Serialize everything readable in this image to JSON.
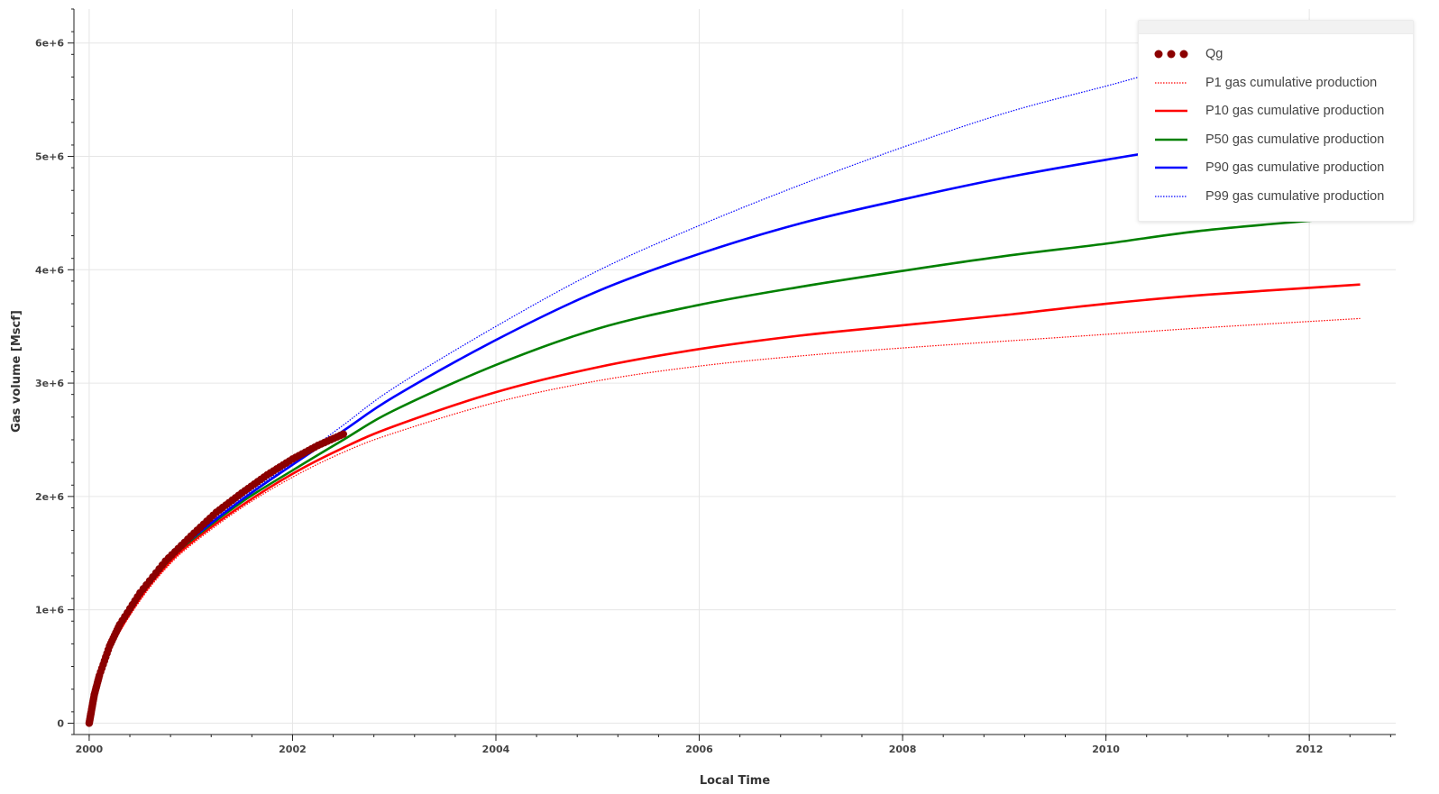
{
  "chart_data": {
    "type": "line",
    "xlabel": "Local Time",
    "ylabel": "Gas volume [Mscf]",
    "xlim": [
      1999.85,
      2012.85
    ],
    "ylim": [
      -100000,
      6300000
    ],
    "x_ticks": [
      2000,
      2002,
      2004,
      2006,
      2008,
      2010,
      2012
    ],
    "x_tick_labels": [
      "2000",
      "2002",
      "2004",
      "2006",
      "2008",
      "2010",
      "2012"
    ],
    "y_ticks": [
      0,
      1000000,
      2000000,
      3000000,
      4000000,
      5000000,
      6000000
    ],
    "y_tick_labels": [
      "0",
      "1e+6",
      "2e+6",
      "3e+6",
      "4e+6",
      "5e+6",
      "6e+6"
    ],
    "grid": true,
    "legend_position": "top-right",
    "series": [
      {
        "name": "Qg",
        "kind": "scatter",
        "color": "#8b0000",
        "x": [
          2000.0,
          2000.02,
          2000.05,
          2000.1,
          2000.2,
          2000.3,
          2000.5,
          2000.75,
          2001.0,
          2001.25,
          2001.5,
          2001.75,
          2002.0,
          2002.25,
          2002.5
        ],
        "y": [
          0,
          100000,
          250000,
          420000,
          680000,
          870000,
          1150000,
          1430000,
          1650000,
          1860000,
          2030000,
          2190000,
          2330000,
          2450000,
          2550000
        ]
      },
      {
        "name": "P1 gas cumulative production",
        "kind": "line",
        "style": "dotted",
        "color": "#ff0000",
        "x": [
          2000.0,
          2000.1,
          2000.25,
          2000.5,
          2000.75,
          2001.0,
          2001.5,
          2002.0,
          2002.5,
          2003.0,
          2004.0,
          2005.0,
          2006.0,
          2007.0,
          2008.0,
          2009.0,
          2010.0,
          2011.0,
          2012.5
        ],
        "y": [
          0,
          370000,
          720000,
          1080000,
          1360000,
          1570000,
          1900000,
          2170000,
          2390000,
          2560000,
          2830000,
          3020000,
          3150000,
          3240000,
          3310000,
          3370000,
          3430000,
          3490000,
          3570000
        ]
      },
      {
        "name": "P10 gas cumulative production",
        "kind": "line",
        "style": "solid",
        "color": "#ff0000",
        "x": [
          2000.0,
          2000.1,
          2000.25,
          2000.5,
          2000.75,
          2001.0,
          2001.5,
          2002.0,
          2002.5,
          2003.0,
          2004.0,
          2005.0,
          2006.0,
          2007.0,
          2008.0,
          2009.0,
          2010.0,
          2011.0,
          2012.5
        ],
        "y": [
          0,
          380000,
          730000,
          1100000,
          1380000,
          1590000,
          1920000,
          2200000,
          2430000,
          2620000,
          2920000,
          3140000,
          3300000,
          3420000,
          3510000,
          3600000,
          3700000,
          3780000,
          3870000
        ]
      },
      {
        "name": "P50 gas cumulative production",
        "kind": "line",
        "style": "solid",
        "color": "#008000",
        "x": [
          2000.0,
          2000.1,
          2000.25,
          2000.5,
          2000.75,
          2001.0,
          2001.5,
          2002.0,
          2002.5,
          2003.0,
          2004.0,
          2005.0,
          2006.0,
          2007.0,
          2008.0,
          2009.0,
          2010.0,
          2011.0,
          2012.5
        ],
        "y": [
          0,
          390000,
          750000,
          1120000,
          1400000,
          1610000,
          1950000,
          2230000,
          2500000,
          2760000,
          3160000,
          3480000,
          3690000,
          3850000,
          3990000,
          4120000,
          4230000,
          4350000,
          4470000
        ]
      },
      {
        "name": "P90 gas cumulative production",
        "kind": "line",
        "style": "solid",
        "color": "#0000ff",
        "x": [
          2000.0,
          2000.1,
          2000.25,
          2000.5,
          2000.75,
          2001.0,
          2001.5,
          2002.0,
          2002.5,
          2003.0,
          2004.0,
          2005.0,
          2006.0,
          2007.0,
          2008.0,
          2009.0,
          2010.0,
          2011.0,
          2012.5
        ],
        "y": [
          0,
          395000,
          760000,
          1130000,
          1410000,
          1620000,
          1970000,
          2280000,
          2580000,
          2880000,
          3380000,
          3810000,
          4140000,
          4410000,
          4620000,
          4810000,
          4970000,
          5110000,
          5270000
        ]
      },
      {
        "name": "P99 gas cumulative production",
        "kind": "line",
        "style": "dotted",
        "color": "#0000ff",
        "x": [
          2000.0,
          2000.1,
          2000.25,
          2000.5,
          2000.75,
          2001.0,
          2001.5,
          2002.0,
          2002.5,
          2003.0,
          2004.0,
          2005.0,
          2006.0,
          2007.0,
          2008.0,
          2009.0,
          2010.0,
          2011.0,
          2012.5
        ],
        "y": [
          0,
          400000,
          770000,
          1140000,
          1420000,
          1630000,
          1990000,
          2300000,
          2630000,
          2960000,
          3500000,
          3990000,
          4390000,
          4750000,
          5080000,
          5380000,
          5620000,
          5850000,
          6080000
        ]
      }
    ]
  }
}
